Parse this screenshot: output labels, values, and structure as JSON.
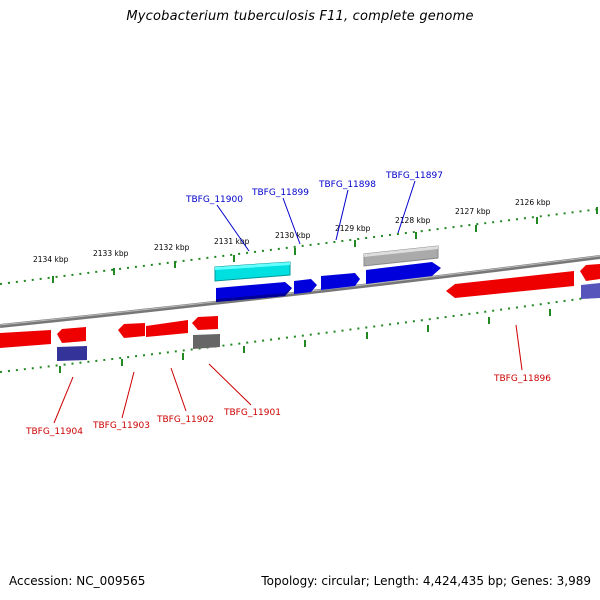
{
  "title": "Mycobacterium tuberculosis F11, complete genome",
  "footer": {
    "accession": "Accession: NC_009565",
    "topology": "Topology: circular; Length: 4,424,435 bp; Genes: 3,989"
  },
  "scale_ticks": [
    "2134 kbp",
    "2133 kbp",
    "2132 kbp",
    "2131 kbp",
    "2130 kbp",
    "2129 kbp",
    "2128 kbp",
    "2127 kbp",
    "2126 kbp"
  ],
  "forward_labels": [
    "TBFG_11900",
    "TBFG_11899",
    "TBFG_11898",
    "TBFG_11897"
  ],
  "reverse_labels": [
    "TBFG_11904",
    "TBFG_11903",
    "TBFG_11902",
    "TBFG_11901",
    "TBFG_11896"
  ],
  "colors": {
    "forward_gene": "#0000dd",
    "reverse_gene": "#ee0000",
    "highlight": "#00e0e0",
    "pseudo": "#aaaaaa",
    "backbone": "#777777",
    "ticks": "#228822",
    "forward_label": "#0000cc",
    "reverse_label": "#cc0000"
  }
}
